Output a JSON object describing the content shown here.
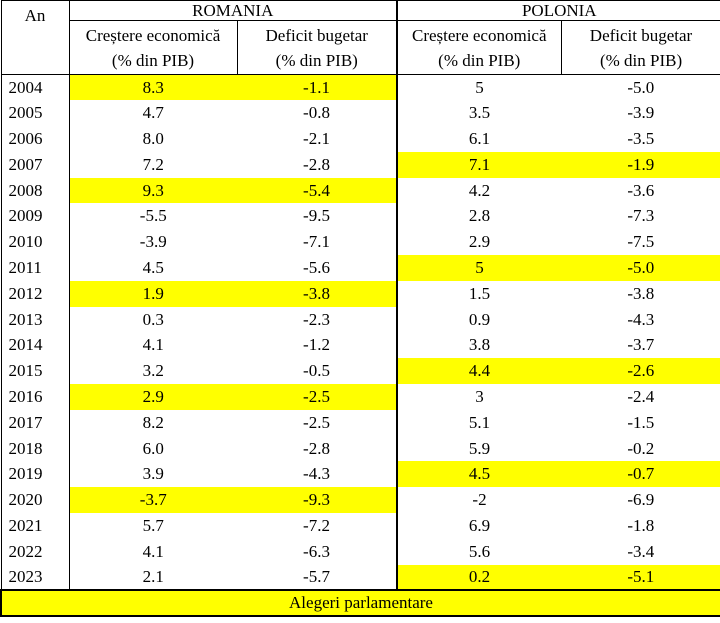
{
  "header": {
    "year_label": "An",
    "countries": [
      {
        "name": "ROMANIA",
        "col1": [
          "Creștere economică",
          "(% din PIB)"
        ],
        "col2": [
          "Deficit bugetar",
          "(% din PIB)"
        ]
      },
      {
        "name": "POLONIA",
        "col1": [
          "Creștere economică",
          "(% din PIB)"
        ],
        "col2": [
          "Deficit bugetar",
          "(% din PIB)"
        ]
      }
    ]
  },
  "rows": [
    {
      "year": "2004",
      "ro_growth": "8.3",
      "ro_deficit": "-1.1",
      "pl_growth": "5",
      "pl_deficit": "-5.0",
      "ro_highlight": true,
      "pl_highlight": false
    },
    {
      "year": "2005",
      "ro_growth": "4.7",
      "ro_deficit": "-0.8",
      "pl_growth": "3.5",
      "pl_deficit": "-3.9",
      "ro_highlight": false,
      "pl_highlight": false
    },
    {
      "year": "2006",
      "ro_growth": "8.0",
      "ro_deficit": "-2.1",
      "pl_growth": "6.1",
      "pl_deficit": "-3.5",
      "ro_highlight": false,
      "pl_highlight": false
    },
    {
      "year": "2007",
      "ro_growth": "7.2",
      "ro_deficit": "-2.8",
      "pl_growth": "7.1",
      "pl_deficit": "-1.9",
      "ro_highlight": false,
      "pl_highlight": true
    },
    {
      "year": "2008",
      "ro_growth": "9.3",
      "ro_deficit": "-5.4",
      "pl_growth": "4.2",
      "pl_deficit": "-3.6",
      "ro_highlight": true,
      "pl_highlight": false
    },
    {
      "year": "2009",
      "ro_growth": "-5.5",
      "ro_deficit": "-9.5",
      "pl_growth": "2.8",
      "pl_deficit": "-7.3",
      "ro_highlight": false,
      "pl_highlight": false
    },
    {
      "year": "2010",
      "ro_growth": "-3.9",
      "ro_deficit": "-7.1",
      "pl_growth": "2.9",
      "pl_deficit": "-7.5",
      "ro_highlight": false,
      "pl_highlight": false
    },
    {
      "year": "2011",
      "ro_growth": "4.5",
      "ro_deficit": "-5.6",
      "pl_growth": "5",
      "pl_deficit": "-5.0",
      "ro_highlight": false,
      "pl_highlight": true
    },
    {
      "year": "2012",
      "ro_growth": "1.9",
      "ro_deficit": "-3.8",
      "pl_growth": "1.5",
      "pl_deficit": "-3.8",
      "ro_highlight": true,
      "pl_highlight": false
    },
    {
      "year": "2013",
      "ro_growth": "0.3",
      "ro_deficit": "-2.3",
      "pl_growth": "0.9",
      "pl_deficit": "-4.3",
      "ro_highlight": false,
      "pl_highlight": false
    },
    {
      "year": "2014",
      "ro_growth": "4.1",
      "ro_deficit": "-1.2",
      "pl_growth": "3.8",
      "pl_deficit": "-3.7",
      "ro_highlight": false,
      "pl_highlight": false
    },
    {
      "year": "2015",
      "ro_growth": "3.2",
      "ro_deficit": "-0.5",
      "pl_growth": "4.4",
      "pl_deficit": "-2.6",
      "ro_highlight": false,
      "pl_highlight": true
    },
    {
      "year": "2016",
      "ro_growth": "2.9",
      "ro_deficit": "-2.5",
      "pl_growth": "3",
      "pl_deficit": "-2.4",
      "ro_highlight": true,
      "pl_highlight": false
    },
    {
      "year": "2017",
      "ro_growth": "8.2",
      "ro_deficit": "-2.5",
      "pl_growth": "5.1",
      "pl_deficit": "-1.5",
      "ro_highlight": false,
      "pl_highlight": false
    },
    {
      "year": "2018",
      "ro_growth": "6.0",
      "ro_deficit": "-2.8",
      "pl_growth": "5.9",
      "pl_deficit": "-0.2",
      "ro_highlight": false,
      "pl_highlight": false
    },
    {
      "year": "2019",
      "ro_growth": "3.9",
      "ro_deficit": "-4.3",
      "pl_growth": "4.5",
      "pl_deficit": "-0.7",
      "ro_highlight": false,
      "pl_highlight": true
    },
    {
      "year": "2020",
      "ro_growth": "-3.7",
      "ro_deficit": "-9.3",
      "pl_growth": "-2",
      "pl_deficit": "-6.9",
      "ro_highlight": true,
      "pl_highlight": false
    },
    {
      "year": "2021",
      "ro_growth": "5.7",
      "ro_deficit": "-7.2",
      "pl_growth": "6.9",
      "pl_deficit": "-1.8",
      "ro_highlight": false,
      "pl_highlight": false
    },
    {
      "year": "2022",
      "ro_growth": "4.1",
      "ro_deficit": "-6.3",
      "pl_growth": "5.6",
      "pl_deficit": "-3.4",
      "ro_highlight": false,
      "pl_highlight": false
    },
    {
      "year": "2023",
      "ro_growth": "2.1",
      "ro_deficit": "-5.7",
      "pl_growth": "0.2",
      "pl_deficit": "-5.1",
      "ro_highlight": false,
      "pl_highlight": true
    }
  ],
  "legend": {
    "label": "Alegeri parlamentare",
    "color": "#ffff00"
  }
}
